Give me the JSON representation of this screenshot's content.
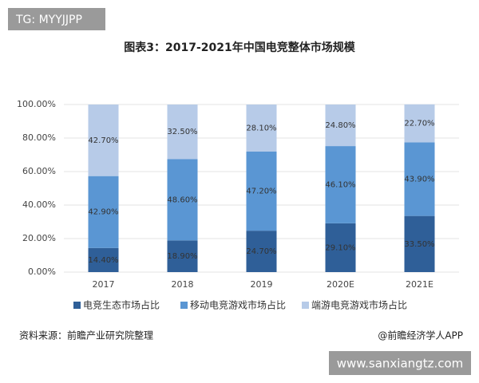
{
  "page": {
    "badge": "TG: MYYJJPP",
    "source": "资料来源：前瞻产业研究院整理",
    "credit": "@前瞻经济学人APP",
    "site": "www.sanxiangtz.com"
  },
  "chart_data": {
    "type": "stacked-bar",
    "title": "图表3：2017-2021年中国电竞整体市场规模",
    "categories": [
      "2017",
      "2018",
      "2019",
      "2020E",
      "2021E"
    ],
    "series": [
      {
        "name": "电竞生态市场占比",
        "color": "#2f5f98",
        "values": [
          14.4,
          18.9,
          24.7,
          29.1,
          33.5
        ],
        "value_labels": [
          "14.40%",
          "18.90%",
          "24.70%",
          "29.10%",
          "33.50%"
        ]
      },
      {
        "name": "移动电竞游戏市场占比",
        "color": "#5a96d3",
        "values": [
          42.9,
          48.6,
          47.2,
          46.1,
          43.9
        ],
        "value_labels": [
          "42.90%",
          "48.60%",
          "47.20%",
          "46.10%",
          "43.90%"
        ]
      },
      {
        "name": "端游电竞游戏市场占比",
        "color": "#b7cbe8",
        "values": [
          42.7,
          32.5,
          28.1,
          24.8,
          22.7
        ],
        "value_labels": [
          "42.70%",
          "32.50%",
          "28.10%",
          "24.80%",
          "22.70%"
        ]
      }
    ],
    "ylim": [
      0,
      100
    ],
    "yticks": [
      {
        "value": 0,
        "label": "0.00%"
      },
      {
        "value": 20,
        "label": "20.00%"
      },
      {
        "value": 40,
        "label": "40.00%"
      },
      {
        "value": 60,
        "label": "60.00%"
      },
      {
        "value": 80,
        "label": "80.00%"
      },
      {
        "value": 100,
        "label": "100.00%"
      }
    ],
    "grid": true
  }
}
